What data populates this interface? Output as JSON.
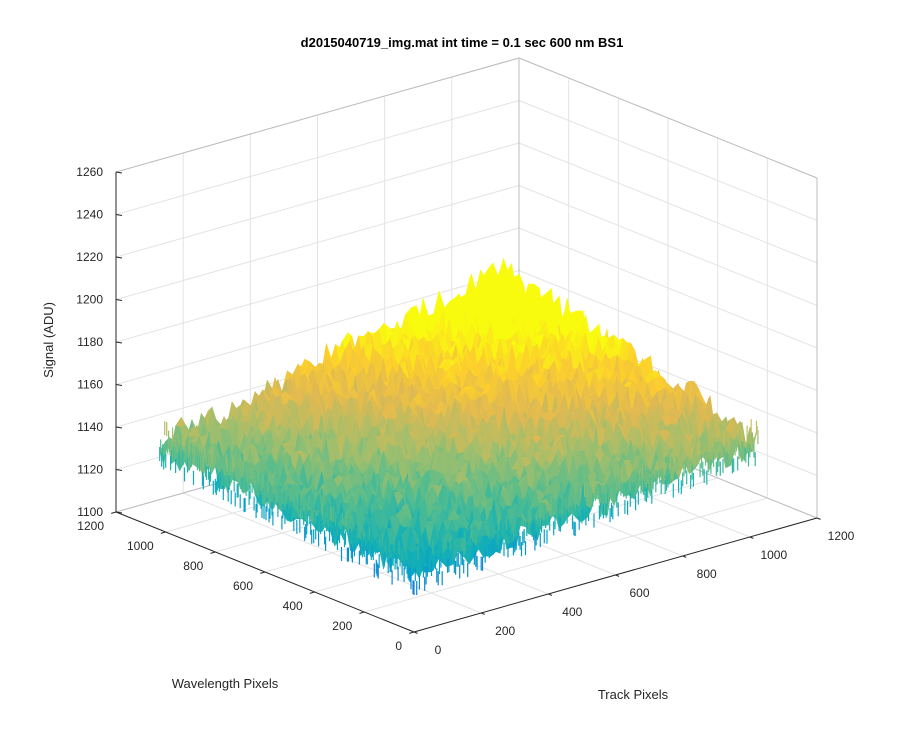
{
  "chart_data": {
    "type": "surface",
    "title": "d2015040719_img.mat int time = 0.1 sec  600 nm BS1",
    "xlabel": "Track Pixels",
    "ylabel": "Wavelength Pixels",
    "zlabel": "Signal (ADU)",
    "xlim": [
      0,
      1200
    ],
    "ylim": [
      0,
      1200
    ],
    "zlim": [
      1100,
      1260
    ],
    "x_ticks": [
      0,
      200,
      400,
      600,
      800,
      1000,
      1200
    ],
    "y_ticks": [
      0,
      200,
      400,
      600,
      800,
      1000,
      1200
    ],
    "z_ticks": [
      1100,
      1120,
      1140,
      1160,
      1180,
      1200,
      1220,
      1240,
      1260
    ],
    "x_tick_labels": [
      "0",
      "200",
      "400",
      "600",
      "800",
      "1000",
      "1200"
    ],
    "y_tick_labels": [
      "0",
      "200",
      "400",
      "600",
      "800",
      "1000",
      "1200"
    ],
    "z_tick_labels": [
      "1100",
      "1120",
      "1140",
      "1160",
      "1180",
      "1200",
      "1220",
      "1240",
      "1260"
    ],
    "grid": true,
    "colormap": "parula",
    "surface_extent": {
      "x": [
        0,
        1024
      ],
      "y": [
        0,
        1024
      ]
    },
    "signal_at_corners": {
      "x0_y0": 1128,
      "x1024_y0": 1144,
      "x0_y1024": 1140,
      "x1024_y1024": 1176
    },
    "noise_amplitude": 8
  }
}
